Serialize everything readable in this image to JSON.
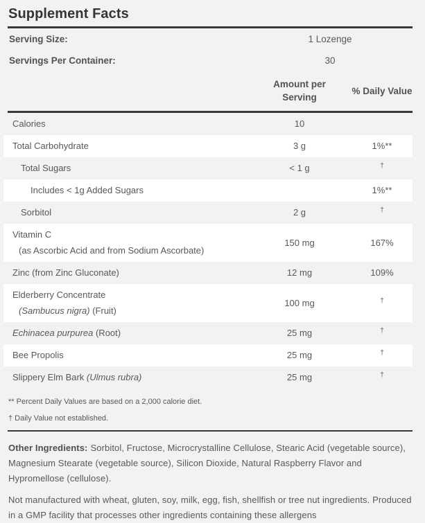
{
  "title": "Supplement Facts",
  "serving_info": [
    {
      "label": "Serving Size:",
      "value": "1 Lozenge"
    },
    {
      "label": "Servings Per Container:",
      "value": "30"
    }
  ],
  "columns": {
    "amount": "Amount per Serving",
    "daily_value": "% Daily Value"
  },
  "rows": [
    {
      "indent": 0,
      "name_lines": [
        [
          {
            "text": "Calories"
          }
        ]
      ],
      "amount": "10",
      "dv": ""
    },
    {
      "indent": 0,
      "name_lines": [
        [
          {
            "text": "Total Carbohydrate"
          }
        ]
      ],
      "amount": "3 g",
      "dv": "1%**"
    },
    {
      "indent": 1,
      "name_lines": [
        [
          {
            "text": "Total Sugars"
          }
        ]
      ],
      "amount": "< 1 g",
      "dv": "†"
    },
    {
      "indent": 2,
      "name_lines": [
        [
          {
            "text": "Includes < 1g Added Sugars"
          }
        ]
      ],
      "amount": "",
      "dv": "1%**"
    },
    {
      "indent": 1,
      "name_lines": [
        [
          {
            "text": "Sorbitol"
          }
        ]
      ],
      "amount": "2 g",
      "dv": "†"
    },
    {
      "indent": 0,
      "name_lines": [
        [
          {
            "text": "Vitamin C"
          }
        ],
        [
          {
            "text": "(as Ascorbic Acid and from Sodium Ascorbate)"
          }
        ]
      ],
      "amount": "150 mg",
      "dv": "167%"
    },
    {
      "indent": 0,
      "name_lines": [
        [
          {
            "text": "Zinc (from Zinc Gluconate)"
          }
        ]
      ],
      "amount": "12 mg",
      "dv": "109%"
    },
    {
      "indent": 0,
      "name_lines": [
        [
          {
            "text": "Elderberry Concentrate"
          }
        ],
        [
          {
            "text": "(Sambucus nigra)",
            "italic": true
          },
          {
            "text": " (Fruit)"
          }
        ]
      ],
      "amount": "100 mg",
      "dv": "†"
    },
    {
      "indent": 0,
      "name_lines": [
        [
          {
            "text": "Echinacea purpurea",
            "italic": true
          },
          {
            "text": " (Root)"
          }
        ]
      ],
      "amount": "25 mg",
      "dv": "†"
    },
    {
      "indent": 0,
      "name_lines": [
        [
          {
            "text": "Bee Propolis"
          }
        ]
      ],
      "amount": "25 mg",
      "dv": "†"
    },
    {
      "indent": 0,
      "name_lines": [
        [
          {
            "text": "Slippery Elm Bark "
          },
          {
            "text": "(Ulmus rubra)",
            "italic": true
          }
        ]
      ],
      "amount": "25 mg",
      "dv": "†"
    }
  ],
  "footnotes": [
    "** Percent Daily Values are based on a 2,000 calorie diet.",
    "† Daily Value not established."
  ],
  "other_ingredients": {
    "label": "Other Ingredients:",
    "text": "Sorbitol, Fructose, Microcrystalline Cellulose, Stearic Acid (vegetable source), Magnesium Stearate (vegetable source), Silicon Dioxide, Natural Raspberry Flavor and Hypromellose (cellulose)."
  },
  "allergen_statement": "Not manufactured with wheat, gluten, soy, milk, egg, fish, shellfish or tree nut ingredients. Produced in a GMP facility that processes other ingredients containing these allergens",
  "colors": {
    "page_background": "#f2f2f2",
    "row_stripe": "#ffffff",
    "text": "#58585a",
    "heading": "#343436",
    "rule": "#38383a"
  }
}
